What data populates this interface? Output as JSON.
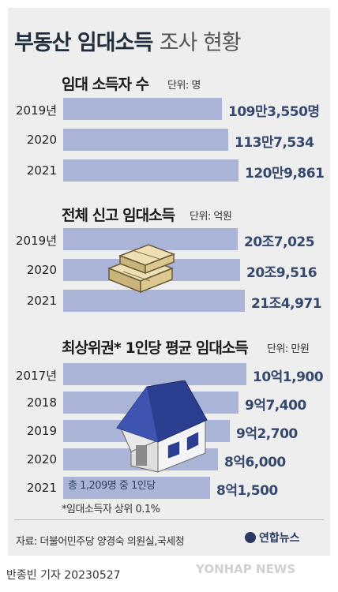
{
  "title_main": "부동산 임대소득",
  "title_sub": "조사 현황",
  "colors": {
    "bar": "#a9b4d6",
    "value": "#35496f",
    "background": "#eeeeee"
  },
  "chart_data": [
    {
      "type": "bar",
      "orientation": "horizontal",
      "title": "임대 소득자 수",
      "unit": "단위: 명",
      "categories": [
        "2019년",
        "2020",
        "2021"
      ],
      "values": [
        1093550,
        1137534,
        1209861
      ],
      "value_labels": [
        "109만3,550명",
        "113만7,534",
        "120만9,861"
      ]
    },
    {
      "type": "bar",
      "orientation": "horizontal",
      "title": "전체 신고 임대소득",
      "unit": "단위: 억원",
      "categories": [
        "2019년",
        "2020",
        "2021"
      ],
      "values": [
        207025,
        209516,
        214971
      ],
      "value_labels": [
        "20조7,025",
        "20조9,516",
        "21조4,971"
      ]
    },
    {
      "type": "bar",
      "orientation": "horizontal",
      "title": "최상위권* 1인당 평균 임대소득",
      "unit": "단위: 만원",
      "categories": [
        "2017년",
        "2018",
        "2019",
        "2020",
        "2021"
      ],
      "values": [
        101900,
        97400,
        92700,
        86000,
        81500
      ],
      "value_labels": [
        "10억1,900",
        "9억7,400",
        "9억2,700",
        "8억6,000",
        "8억1,500"
      ],
      "bar_note": "총 1,209명 중 1인당",
      "footnote": "*임대소득자 상위 0.1%"
    }
  ],
  "source": "자료: 더불어민주당 양경숙 의원실,국세청",
  "logo": "연합뉴스",
  "author": "반종빈 기자  20230527",
  "watermark": "YONHAP NEWS"
}
